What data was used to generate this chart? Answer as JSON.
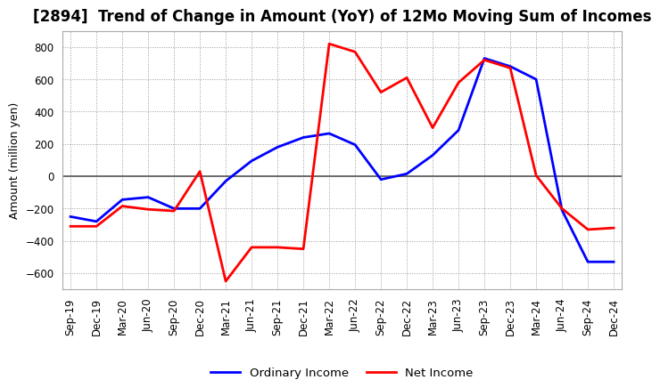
{
  "title": "[2894]  Trend of Change in Amount (YoY) of 12Mo Moving Sum of Incomes",
  "ylabel": "Amount (million yen)",
  "x_labels": [
    "Sep-19",
    "Dec-19",
    "Mar-20",
    "Jun-20",
    "Sep-20",
    "Dec-20",
    "Mar-21",
    "Jun-21",
    "Sep-21",
    "Dec-21",
    "Mar-22",
    "Jun-22",
    "Sep-22",
    "Dec-22",
    "Mar-23",
    "Jun-23",
    "Sep-23",
    "Dec-23",
    "Mar-24",
    "Jun-24",
    "Sep-24",
    "Dec-24"
  ],
  "ordinary_income": [
    -250,
    -280,
    -145,
    -130,
    -200,
    -200,
    -30,
    95,
    180,
    240,
    265,
    195,
    -20,
    15,
    130,
    285,
    730,
    680,
    600,
    -210,
    -530,
    -530
  ],
  "net_income": [
    -310,
    -310,
    -185,
    -205,
    -215,
    30,
    -650,
    -440,
    -440,
    -450,
    820,
    770,
    520,
    610,
    300,
    580,
    720,
    670,
    5,
    -200,
    -330,
    -320
  ],
  "ordinary_color": "#0000ff",
  "net_color": "#ff0000",
  "ylim": [
    -700,
    900
  ],
  "yticks": [
    -600,
    -400,
    -200,
    0,
    200,
    400,
    600,
    800
  ],
  "legend_labels": [
    "Ordinary Income",
    "Net Income"
  ],
  "background_color": "#ffffff",
  "plot_bg_color": "#ffffff",
  "grid_color": "#999999",
  "line_width": 2.0,
  "title_fontsize": 12,
  "axis_fontsize": 9,
  "tick_fontsize": 8.5
}
